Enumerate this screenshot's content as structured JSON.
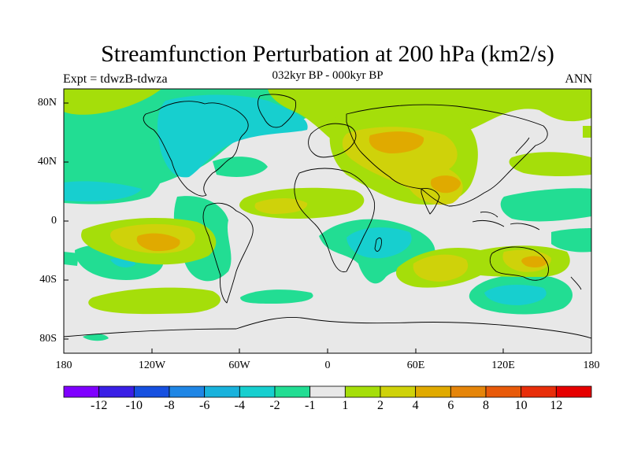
{
  "title": "Streamfunction Perturbation at 200 hPa (km2/s)",
  "subtitle": "032kyr BP - 000kyr BP",
  "left_label": "Expt = tdwzB-tdwza",
  "right_label": "ANN",
  "lat_ticks": [
    "80N",
    "40N",
    "0",
    "40S",
    "80S"
  ],
  "lon_ticks": [
    "180",
    "120W",
    "60W",
    "0",
    "60E",
    "120E",
    "180"
  ],
  "colorbar": {
    "labels": [
      "-12",
      "-10",
      "-8",
      "-6",
      "-4",
      "-2",
      "-1",
      "1",
      "2",
      "4",
      "6",
      "8",
      "10",
      "12"
    ],
    "colors": [
      "#7f00ff",
      "#3a1fe6",
      "#1650e0",
      "#1f86e5",
      "#19b2dc",
      "#17cfcf",
      "#22dd93",
      "#e8e8e8",
      "#a5de0a",
      "#cfd20a",
      "#e0aa00",
      "#e5850a",
      "#e85a0a",
      "#e82e0a",
      "#e60000"
    ]
  },
  "colors": {
    "land_outline": "#000000",
    "background_zero": "#e8e8e8"
  }
}
